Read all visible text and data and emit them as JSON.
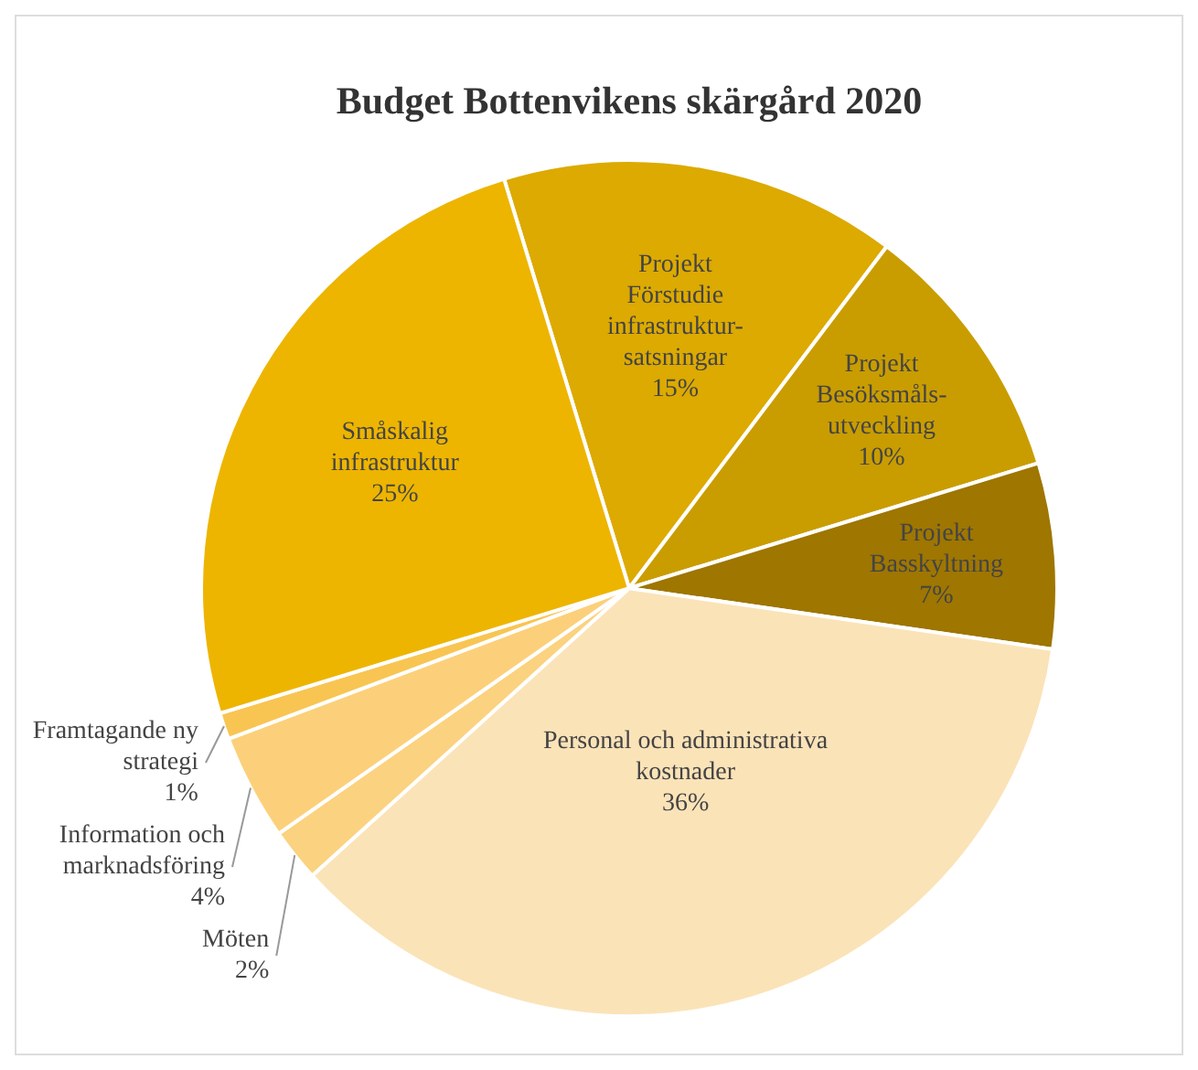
{
  "chart_data": {
    "type": "pie",
    "title": "Budget Bottenvikens skärgård 2020",
    "categories": [
      "Projekt Förstudie infrastruktur-satsningar",
      "Projekt Besöksmåls-utveckling",
      "Projekt Basskyltning",
      "Personal och administrativa kostnader",
      "Möten",
      "Information och marknadsföring",
      "Framtagande ny strategi",
      "Småskalig infrastruktur"
    ],
    "values": [
      15,
      10,
      7,
      36,
      2,
      4,
      1,
      25
    ],
    "colors": [
      "#dcaa00",
      "#c99d00",
      "#9e7600",
      "#fbe3b8",
      "#fbd27f",
      "#fcd07a",
      "#f8c553",
      "#edb500"
    ],
    "value_labels": [
      "15%",
      "10%",
      "7%",
      "36%",
      "2%",
      "4%",
      "1%",
      "25%"
    ],
    "legend": false
  }
}
